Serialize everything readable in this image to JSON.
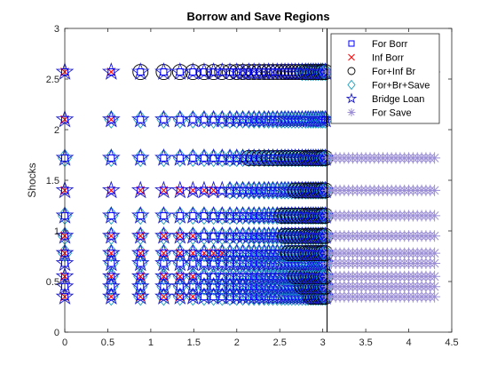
{
  "chart_data": {
    "type": "scatter",
    "title": "Borrow and Save Regions",
    "xlabel": "",
    "ylabel": "Shocks",
    "xlim": [
      0,
      4.5
    ],
    "ylim": [
      0,
      3
    ],
    "x_ticks": [
      "0",
      "0.5",
      "1",
      "1.5",
      "2",
      "2.5",
      "3",
      "3.5",
      "4",
      "4.5"
    ],
    "y_ticks": [
      "0",
      "0.5",
      "1",
      "1.5",
      "2",
      "2.5",
      "3"
    ],
    "grid": false,
    "legend_position": "top-right",
    "shock_levels": [
      0.35,
      0.45,
      0.55,
      0.68,
      0.78,
      0.95,
      1.15,
      1.4,
      1.72,
      2.1,
      2.57
    ],
    "asset_grid": [
      0.0,
      0.54,
      0.88,
      1.15,
      1.34,
      1.49,
      1.62,
      1.73,
      1.83,
      1.92,
      2.0,
      2.07,
      2.14,
      2.2,
      2.26,
      2.32,
      2.37,
      2.42,
      2.47,
      2.52,
      2.56,
      2.6,
      2.64,
      2.68,
      2.72,
      2.76,
      2.8,
      2.83,
      2.86,
      2.89,
      2.92,
      2.95,
      2.98,
      3.0,
      3.03
    ],
    "vertical_line_x": 3.05,
    "save_grid": [
      3.05,
      3.1,
      3.15,
      3.2,
      3.25,
      3.3,
      3.35,
      3.4,
      3.45,
      3.5,
      3.55,
      3.6,
      3.65,
      3.7,
      3.75,
      3.8,
      3.85,
      3.9,
      3.95,
      4.0,
      4.05,
      4.1,
      4.15,
      4.2,
      4.25,
      4.3
    ],
    "series": [
      {
        "name": "For Borr",
        "marker": "square",
        "color": "#0000ff"
      },
      {
        "name": "Inf Borr",
        "marker": "x",
        "color": "#ff0000"
      },
      {
        "name": "For+Inf Br",
        "marker": "circle",
        "color": "#000000"
      },
      {
        "name": "For+Br+Save",
        "marker": "diamond",
        "color": "#1a9fbf"
      },
      {
        "name": "Bridge Loan",
        "marker": "pentagram",
        "color": "#1a1acc"
      },
      {
        "name": "For Save",
        "marker": "asterisk",
        "color": "#9c8fd6"
      }
    ],
    "regions": {
      "bridge_loan_x_max": 3.03,
      "for_br_save_x_min_by_level": {
        "0.35": 0.54,
        "0.45": 0.54,
        "0.55": 0.54,
        "0.68": 0.54,
        "0.78": 0.0,
        "0.95": 0.0,
        "1.15": 0.0,
        "1.4": 1.92,
        "1.72": 0.0,
        "2.1": 0.54,
        "2.57": 2.76
      },
      "inf_borr_levels": [
        0.35,
        0.55,
        0.78,
        0.95,
        1.4,
        2.1,
        2.57
      ],
      "inf_borr_x_max_by_level": {
        "0.35": 1.49,
        "0.55": 1.49,
        "0.78": 1.83,
        "0.95": 1.49,
        "1.4": 1.73,
        "2.1": 0.54,
        "2.57": 0.54
      },
      "for_inf_br_x_ranges": {
        "2.57": [
          0.88,
          3.03
        ],
        "1.72": [
          2.14,
          3.03
        ],
        "1.4": [
          2.68,
          3.03
        ],
        "1.15": [
          2.52,
          3.03
        ],
        "0.95": [
          2.56,
          3.03
        ],
        "0.78": [
          2.6,
          3.03
        ],
        "0.55": [
          2.68,
          3.03
        ],
        "0.45": [
          2.76,
          3.03
        ],
        "0.35": [
          2.86,
          3.03
        ]
      },
      "save_levels": [
        0.35,
        0.45,
        0.55,
        0.68,
        0.78,
        0.95,
        1.15,
        1.4,
        1.72,
        2.57
      ]
    }
  }
}
